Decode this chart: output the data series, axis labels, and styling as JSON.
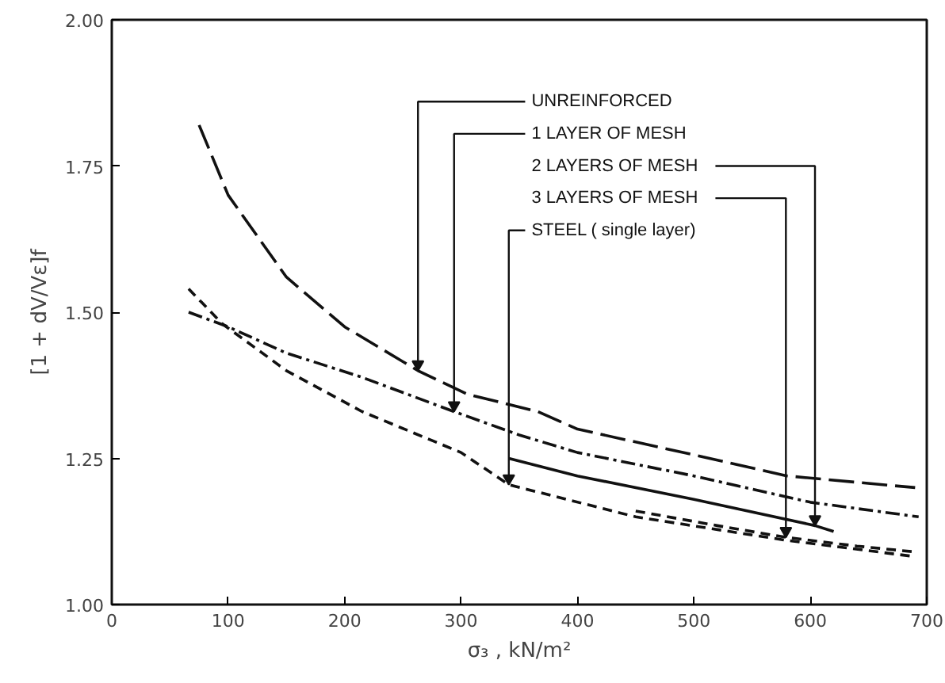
{
  "chart_data": {
    "type": "line",
    "xlabel": "σ₃ , kN/m²",
    "ylabel": "[1 + dV/Vε]f",
    "xlim": [
      0,
      700
    ],
    "ylim": [
      1.0,
      2.0
    ],
    "xticks": [
      0,
      100,
      200,
      300,
      400,
      500,
      600,
      700
    ],
    "yticks": [
      {
        "value": 1.0,
        "label": "1.00"
      },
      {
        "value": 1.25,
        "label": "1.25"
      },
      {
        "value": 1.5,
        "label": "1.50"
      },
      {
        "value": 1.75,
        "label": "1.75"
      },
      {
        "value": 2.0,
        "label": "2.00"
      }
    ],
    "grid": false,
    "marker": "none",
    "series": [
      {
        "color": "#111111",
        "line_style": "longdash",
        "x": [
          75,
          100,
          150,
          200,
          263,
          305,
          366,
          400,
          500,
          580,
          690
        ],
        "values": [
          1.82,
          1.7,
          1.56,
          1.475,
          1.4,
          1.36,
          1.33,
          1.3,
          1.256,
          1.22,
          1.2
        ]
      },
      {
        "color": "#111111",
        "line_style": "dashdot",
        "x": [
          66,
          100,
          150,
          213,
          294,
          350,
          400,
          500,
          600,
          693
        ],
        "values": [
          1.5,
          1.475,
          1.43,
          1.39,
          1.33,
          1.29,
          1.26,
          1.22,
          1.175,
          1.15
        ]
      },
      {
        "color": "#111111",
        "line_style": "solid",
        "x": [
          341,
          400,
          500,
          604,
          620
        ],
        "values": [
          1.25,
          1.22,
          1.18,
          1.135,
          1.125
        ]
      },
      {
        "color": "#111111",
        "line_style": "dashed",
        "x": [
          450,
          520,
          579,
          640,
          690
        ],
        "values": [
          1.16,
          1.135,
          1.115,
          1.1,
          1.09
        ]
      },
      {
        "color": "#111111",
        "line_style": "dashed",
        "x": [
          66,
          95,
          150,
          215,
          300,
          341,
          450,
          579,
          686
        ],
        "values": [
          1.54,
          1.48,
          1.4,
          1.33,
          1.26,
          1.205,
          1.15,
          1.11,
          1.083
        ]
      }
    ],
    "annotations": [
      {
        "text": "UNREINFORCED",
        "x": 263,
        "y": 1.4
      },
      {
        "text": "1 LAYER OF MESH",
        "x": 294,
        "y": 1.33
      },
      {
        "text": "2 LAYERS OF MESH",
        "x": 604,
        "y": 1.135
      },
      {
        "text": "3 LAYERS OF MESH",
        "x": 579,
        "y": 1.115
      },
      {
        "text": "STEEL ( single layer)",
        "x": 341,
        "y": 1.205
      }
    ]
  }
}
